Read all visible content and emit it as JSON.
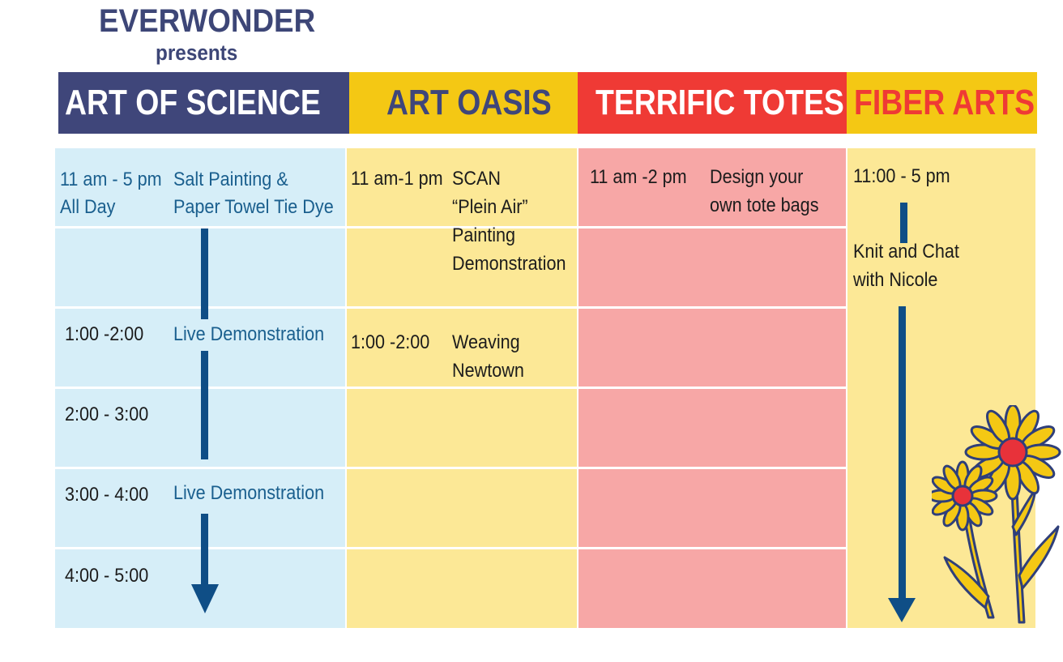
{
  "brand": {
    "name": "EVERWONDER",
    "presents": "presents"
  },
  "colors": {
    "navy": "#3f467a",
    "yellow": "#f4c814",
    "red": "#ef3a35",
    "light_blue": "#d6eef8",
    "light_yellow": "#fce896",
    "light_red": "#f7a7a6",
    "arrow_blue": "#0f4e86"
  },
  "headers": {
    "art_of_science": "ART OF SCIENCE",
    "art_oasis": "ART OASIS",
    "terrific_totes": "TERRIFIC TOTES",
    "fiber_arts": "FIBER ARTS"
  },
  "art_of_science": {
    "row1_time_a": "11 am - 5 pm",
    "row1_time_b": "All Day",
    "row1_event_a": "Salt Painting &",
    "row1_event_b": "Paper Towel Tie Dye",
    "row3_time": "1:00 -2:00",
    "row3_event": "Live Demonstration",
    "row4_time": "2:00 - 3:00",
    "row5_time": "3:00 - 4:00",
    "row5_event": "Live Demonstration",
    "row6_time": "4:00 - 5:00"
  },
  "art_oasis": {
    "row1_time": "11 am-1 pm",
    "row1_event_a": "SCAN",
    "row1_event_b": "“Plein Air”",
    "row1_event_c": "Painting",
    "row1_event_d": "Demonstration",
    "row3_time": "1:00 -2:00",
    "row3_event_a": "Weaving",
    "row3_event_b": "Newtown"
  },
  "terrific_totes": {
    "row1_time": "11 am -2 pm",
    "row1_event_a": "Design your",
    "row1_event_b": "own tote bags"
  },
  "fiber_arts": {
    "time": "11:00  - 5 pm",
    "event_a": "Knit and Chat",
    "event_b": "with Nicole"
  }
}
